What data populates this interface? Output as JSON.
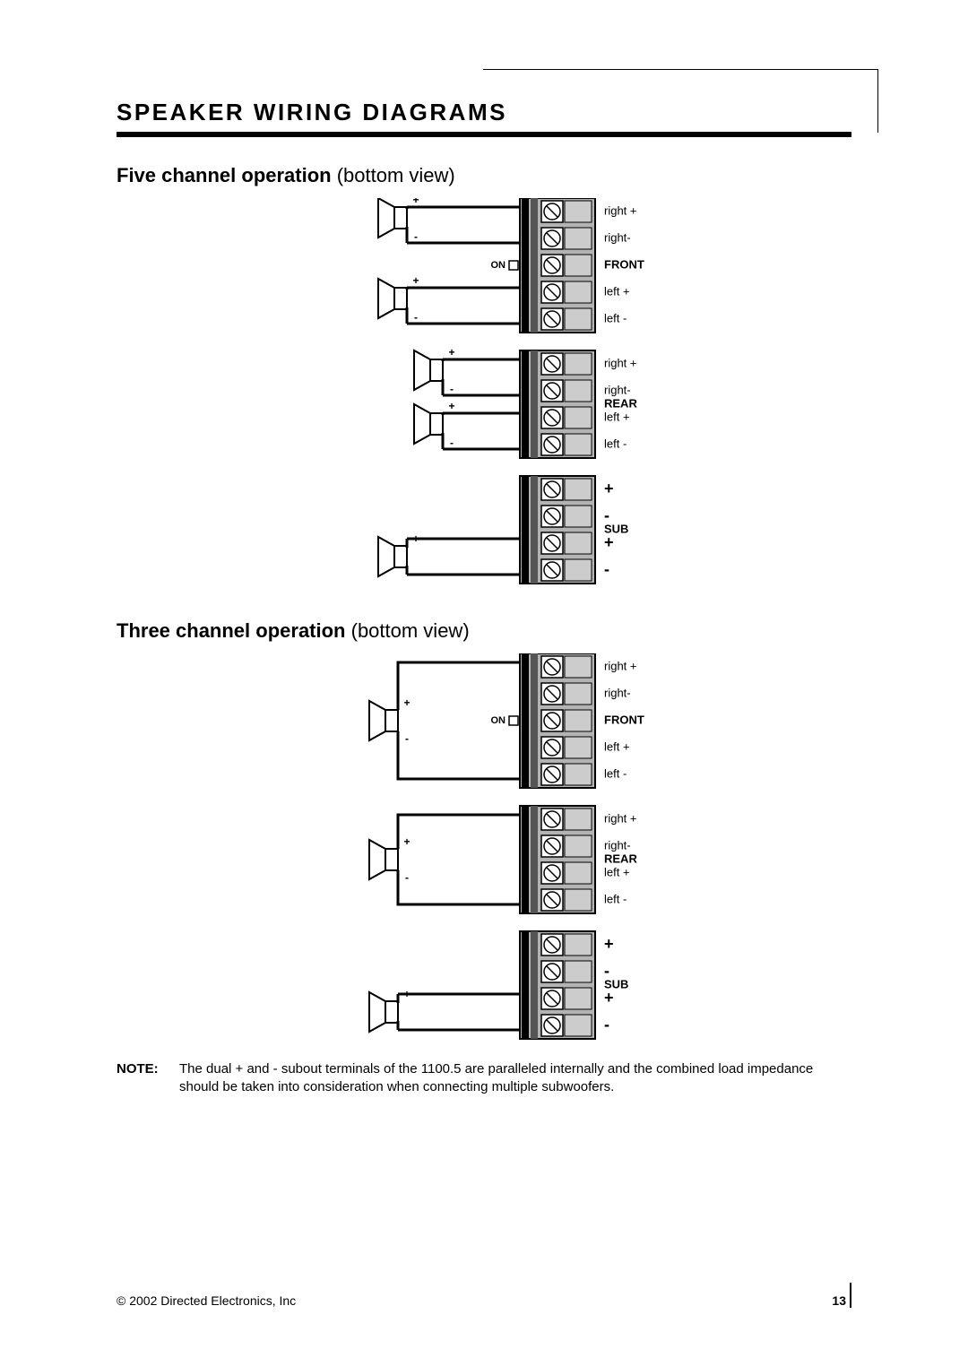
{
  "page": {
    "title": "SPEAKER WIRING DIAGRAMS",
    "note_label": "NOTE:",
    "note_text": "The dual + and - subout terminals of the 1100.5 are paralleled internally and the combined load impedance should be taken into consideration when connecting multiple subwoofers.",
    "copyright": "© 2002 Directed Electronics, Inc",
    "page_number": "13"
  },
  "diagrams": [
    {
      "title_bold": "Five channel operation",
      "title_light": " (bottom view)",
      "blocks": "five"
    },
    {
      "title_bold": "Three channel operation",
      "title_light": " (bottom view)",
      "blocks": "three"
    }
  ],
  "labels": {
    "on": "ON",
    "front": "FRONT",
    "rear": "REAR",
    "sub": "SUB",
    "right_pos": "right +",
    "right_neg": "right-",
    "left_pos": "left +",
    "left_neg": "left -",
    "plus": "+",
    "minus": "-"
  },
  "style": {
    "stroke": "#000000",
    "fill_block": "#b3b3b3",
    "fill_term": "#cccccc",
    "fill_white": "#ffffff",
    "font_label": 13,
    "font_bold": 13,
    "font_sign": 18,
    "stroke_wire": 3,
    "stroke_thin": 2
  }
}
